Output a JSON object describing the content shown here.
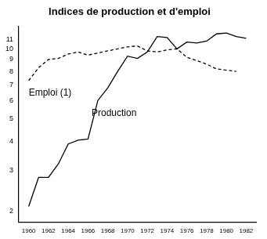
{
  "chart_data": {
    "type": "line",
    "title": "Indices de production et d'emploi",
    "x": [
      1960,
      1961,
      1962,
      1963,
      1964,
      1965,
      1966,
      1967,
      1968,
      1969,
      1970,
      1971,
      1972,
      1973,
      1974,
      1975,
      1976,
      1977,
      1978,
      1979,
      1980,
      1981,
      1982
    ],
    "series": [
      {
        "name": "Emploi (1)",
        "color": "#000000",
        "line_style": "dashed",
        "values": [
          7.3,
          8.3,
          9.0,
          9.1,
          9.5,
          9.7,
          9.4,
          9.6,
          9.8,
          10.0,
          10.2,
          10.3,
          9.8,
          9.7,
          9.9,
          10.0,
          9.2,
          8.9,
          8.6,
          8.2,
          8.1,
          8.0,
          null
        ]
      },
      {
        "name": "Production",
        "color": "#000000",
        "line_style": "solid",
        "values": [
          2.1,
          2.8,
          2.8,
          3.2,
          3.9,
          4.05,
          4.1,
          6.0,
          6.8,
          8.0,
          9.3,
          9.1,
          9.7,
          11.3,
          11.2,
          10.0,
          10.7,
          10.6,
          10.8,
          11.6,
          11.7,
          11.3,
          11.1
        ]
      }
    ],
    "log": "y",
    "grid": false,
    "xlim": [
      1959,
      1983
    ],
    "xticks": [
      1960,
      1962,
      1964,
      1966,
      1968,
      1970,
      1972,
      1974,
      1976,
      1978,
      1980,
      1982
    ],
    "ylim": [
      1.8,
      12.5
    ],
    "yticks": [
      2,
      3,
      4,
      5,
      6,
      7,
      8,
      9,
      10,
      11
    ]
  }
}
